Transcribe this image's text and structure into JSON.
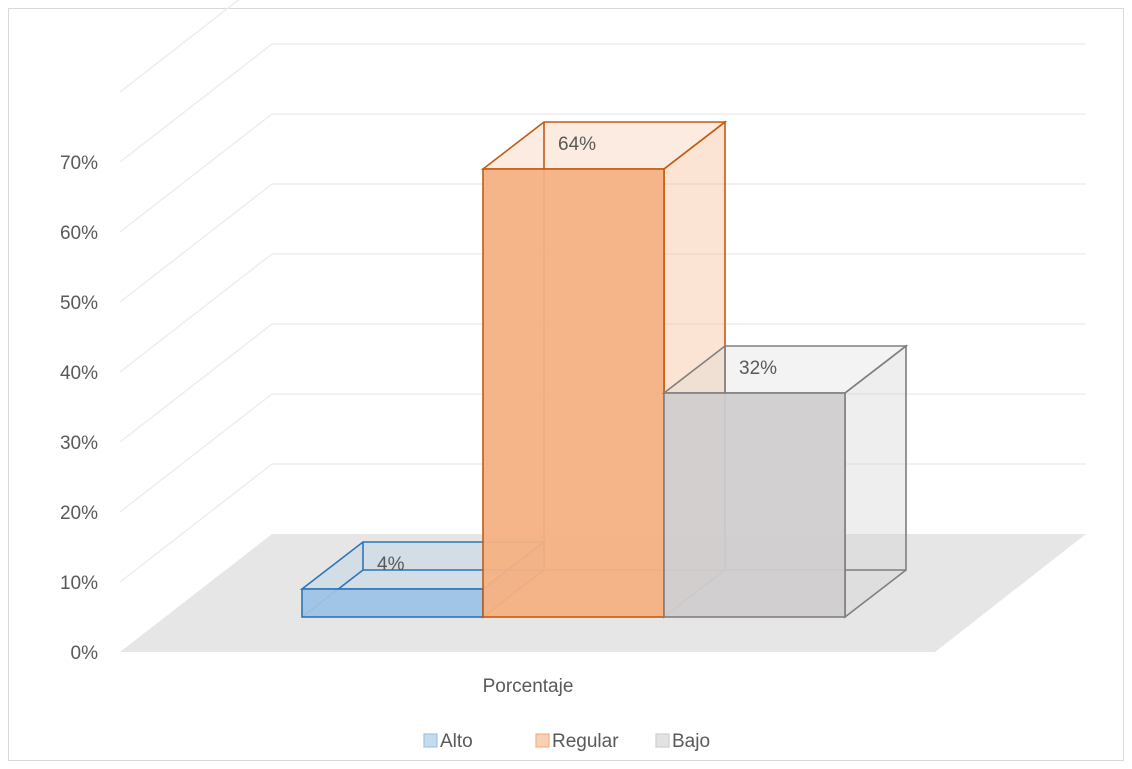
{
  "chart_data": {
    "type": "bar",
    "categories": [
      "Porcentaje"
    ],
    "series": [
      {
        "name": "Alto",
        "values": [
          4
        ],
        "label": "4%",
        "color": "#9dc3e6",
        "stroke": "#2e75b6"
      },
      {
        "name": "Regular",
        "values": [
          64
        ],
        "label": "64%",
        "color": "#f4b183",
        "stroke": "#c55a11"
      },
      {
        "name": "Bajo",
        "values": [
          32
        ],
        "label": "32%",
        "color": "#d0cece",
        "stroke": "#7f7f7f"
      }
    ],
    "y_ticks": [
      "0%",
      "10%",
      "20%",
      "30%",
      "40%",
      "50%",
      "60%",
      "70%"
    ],
    "ylim": [
      0,
      70
    ],
    "grid": true,
    "legend_position": "bottom",
    "three_d": true
  }
}
